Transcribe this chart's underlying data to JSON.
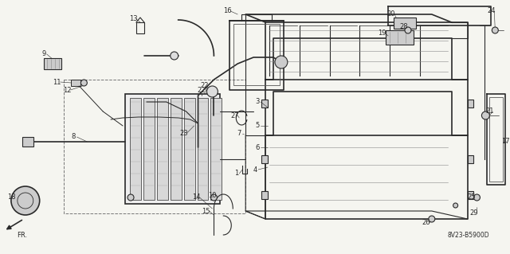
{
  "background_color": "#f5f5f0",
  "diagram_code": "8V23-B5900D",
  "fig_width": 6.4,
  "fig_height": 3.19,
  "dpi": 100,
  "line_color": "#2a2a2a",
  "title_color": "#1a1a1a"
}
